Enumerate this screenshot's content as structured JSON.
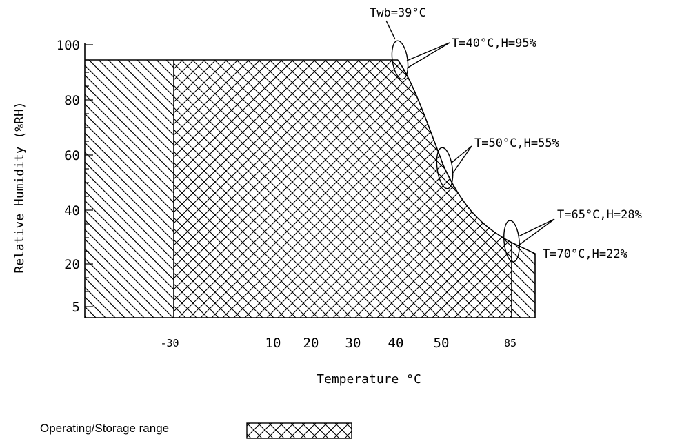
{
  "chart_data": {
    "type": "area",
    "title": "",
    "xlabel": "Temperature °C",
    "ylabel": "Relative Humidity (%RH)",
    "x_ticks": [
      "-30",
      "10",
      "20",
      "30",
      "40",
      "50",
      "85"
    ],
    "y_ticks": [
      "100",
      "80",
      "60",
      "40",
      "20",
      "5"
    ],
    "regions": [
      {
        "name": "Operating/Storage range",
        "pattern": "cross-hatch",
        "boundary": [
          {
            "t": -30,
            "h": 5
          },
          {
            "t": -30,
            "h": 95
          },
          {
            "t": 40,
            "h": 95
          },
          {
            "t": 50,
            "h": 55
          },
          {
            "t": 65,
            "h": 28
          },
          {
            "t": 70,
            "h": 22
          },
          {
            "t": 85,
            "h": 5
          }
        ]
      },
      {
        "name": "",
        "pattern": "diagonal-hatch"
      }
    ],
    "annotations": [
      {
        "id": "twb",
        "text": "Twb=39°C"
      },
      {
        "id": "p40",
        "text": "T=40°C,H=95%"
      },
      {
        "id": "p50",
        "text": "T=50°C,H=55%"
      },
      {
        "id": "p65",
        "text": "T=65°C,H=28%"
      },
      {
        "id": "p70",
        "text": "T=70°C,H=22%"
      }
    ],
    "legend": {
      "label": "Operating/Storage range",
      "pattern": "cross-hatch",
      "position": "bottom-left"
    },
    "grid": false
  }
}
